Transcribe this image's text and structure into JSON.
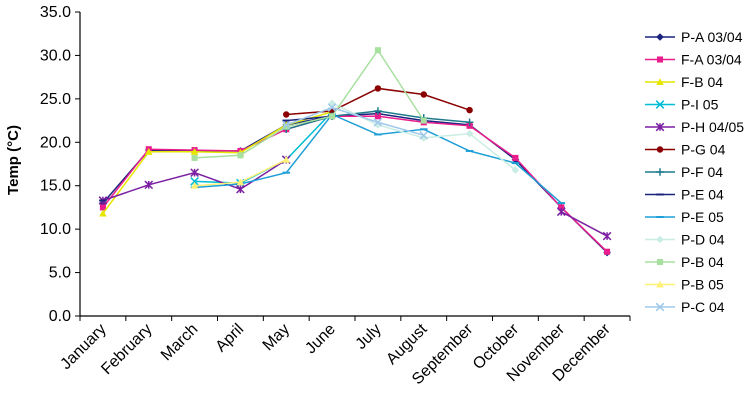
{
  "chart_data": {
    "type": "line",
    "title": "",
    "xlabel": "",
    "ylabel": "Temp (°C)",
    "ylim": [
      0,
      35
    ],
    "yticks": [
      "0.0",
      "5.0",
      "10.0",
      "15.0",
      "20.0",
      "25.0",
      "30.0",
      "35.0"
    ],
    "grid": false,
    "legend_position": "right",
    "categories": [
      "January",
      "February",
      "March",
      "April",
      "May",
      "June",
      "July",
      "August",
      "September",
      "October",
      "November",
      "December"
    ],
    "series": [
      {
        "name": "P-A 03/04",
        "color": "#1a237e",
        "marker": "diamond",
        "values": [
          13.0,
          19.1,
          19.0,
          19.0,
          22.0,
          23.0,
          23.3,
          22.5,
          22.0,
          18.0,
          12.5,
          7.3
        ]
      },
      {
        "name": "F-A 03/04",
        "color": "#e91e8c",
        "marker": "square",
        "values": [
          12.5,
          19.2,
          19.1,
          19.0,
          21.5,
          23.0,
          23.0,
          22.3,
          21.9,
          18.2,
          12.5,
          7.4
        ]
      },
      {
        "name": "F-B 04",
        "color": "#e6e600",
        "marker": "triangle",
        "values": [
          11.8,
          18.9,
          18.9,
          18.8,
          22.0,
          23.5,
          null,
          null,
          null,
          null,
          null,
          null
        ]
      },
      {
        "name": "P-I 05",
        "color": "#00bcd4",
        "marker": "x",
        "values": [
          null,
          null,
          15.5,
          15.3,
          18.0,
          23.5,
          null,
          null,
          null,
          null,
          null,
          null
        ]
      },
      {
        "name": "P-H 04/05",
        "color": "#7b1fa2",
        "marker": "asterisk",
        "values": [
          13.3,
          15.1,
          16.5,
          14.6,
          18.0,
          null,
          null,
          null,
          null,
          null,
          12.0,
          9.2
        ]
      },
      {
        "name": "P-G 04",
        "color": "#8b0000",
        "marker": "circle",
        "values": [
          null,
          null,
          null,
          null,
          23.2,
          23.6,
          26.2,
          25.5,
          23.7,
          null,
          null,
          null
        ]
      },
      {
        "name": "P-F 04",
        "color": "#1e7b8c",
        "marker": "plus",
        "values": [
          null,
          null,
          null,
          null,
          21.5,
          23.0,
          23.6,
          22.8,
          22.3,
          null,
          null,
          null
        ]
      },
      {
        "name": "P-E 04",
        "color": "#1a237e",
        "marker": "dash",
        "values": [
          13.3,
          null,
          null,
          null,
          22.5,
          23.0,
          null,
          null,
          null,
          null,
          null,
          null
        ]
      },
      {
        "name": "P-E 05",
        "color": "#1e9fd6",
        "marker": "dash",
        "values": [
          null,
          null,
          14.8,
          15.2,
          16.5,
          23.2,
          20.9,
          21.5,
          19.0,
          17.6,
          13.0,
          null
        ]
      },
      {
        "name": "P-D 04",
        "color": "#c9ede4",
        "marker": "diamond",
        "values": [
          null,
          null,
          null,
          null,
          null,
          24.5,
          22.0,
          20.5,
          21.0,
          16.8,
          null,
          null
        ]
      },
      {
        "name": "P-B 04",
        "color": "#a8e0a0",
        "marker": "square",
        "values": [
          null,
          null,
          18.2,
          18.5,
          21.8,
          23.0,
          30.6,
          22.5,
          null,
          null,
          null,
          null
        ]
      },
      {
        "name": "P-B 05",
        "color": "#fff176",
        "marker": "triangle",
        "values": [
          null,
          null,
          15.0,
          15.4,
          18.0,
          null,
          null,
          null,
          null,
          null,
          null,
          null
        ]
      },
      {
        "name": "P-C 04",
        "color": "#9fc8ea",
        "marker": "x",
        "values": [
          null,
          null,
          null,
          null,
          22.0,
          24.0,
          22.3,
          20.8,
          null,
          null,
          null,
          null
        ]
      }
    ]
  }
}
